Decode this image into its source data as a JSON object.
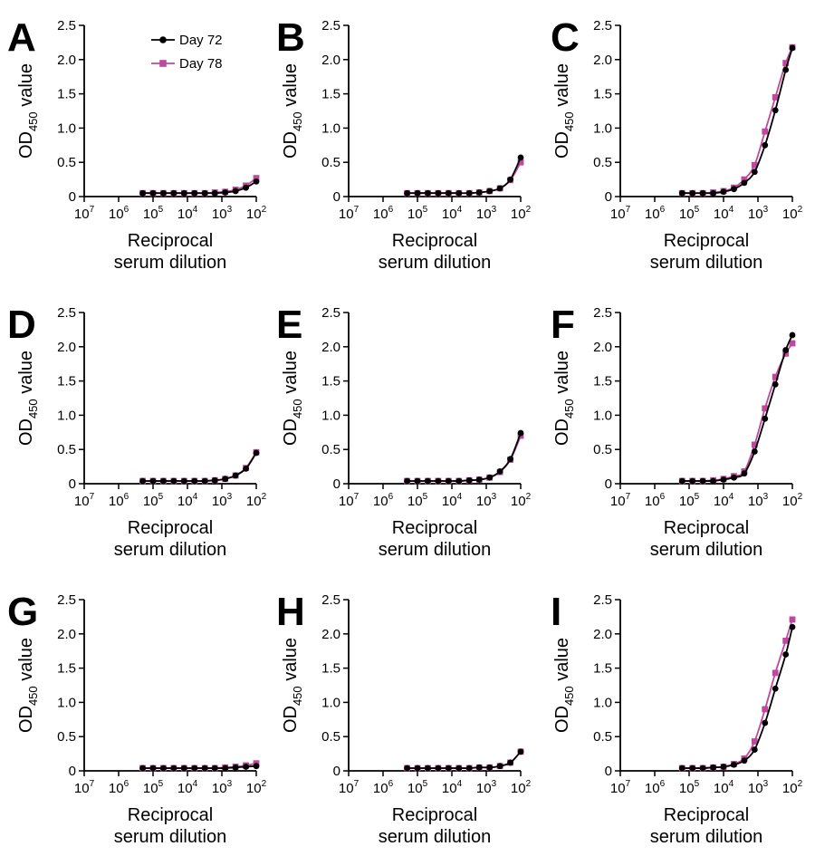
{
  "colors": {
    "day72": "#000000",
    "day78": "#c0479e"
  },
  "legend": [
    {
      "label": "Day 72",
      "marker": "circle",
      "color": "#000000"
    },
    {
      "label": "Day 78",
      "marker": "square",
      "color": "#c0479e"
    }
  ],
  "axes": {
    "ylabel_main": "OD",
    "ylabel_sub": "450",
    "ylabel_rest": " value",
    "xlabel_line1": "Reciprocal",
    "xlabel_line2": "serum dilution",
    "y_ticks": [
      "0",
      "0.5",
      "1.0",
      "1.5",
      "2.0",
      "2.5"
    ],
    "x_ticks": [
      {
        "base": "10",
        "exp": "7"
      },
      {
        "base": "10",
        "exp": "6"
      },
      {
        "base": "10",
        "exp": "5"
      },
      {
        "base": "10",
        "exp": "4"
      },
      {
        "base": "10",
        "exp": "3"
      },
      {
        "base": "10",
        "exp": "2"
      }
    ]
  },
  "chart_data": [
    {
      "panel": "A",
      "type": "line",
      "x": [
        200000,
        100000,
        50000,
        25000,
        12500,
        6250,
        3125,
        1600,
        800,
        400,
        200,
        100
      ],
      "xscale": "log-reversed",
      "xlim": [
        10000000,
        100
      ],
      "ylim": [
        0,
        2.5
      ],
      "series": [
        {
          "name": "Day 72",
          "values": [
            0.05,
            0.05,
            0.05,
            0.05,
            0.05,
            0.05,
            0.05,
            0.05,
            0.06,
            0.08,
            0.13,
            0.22
          ]
        },
        {
          "name": "Day 78",
          "values": [
            0.05,
            0.05,
            0.05,
            0.05,
            0.05,
            0.05,
            0.05,
            0.06,
            0.07,
            0.1,
            0.16,
            0.27
          ]
        }
      ]
    },
    {
      "panel": "B",
      "type": "line",
      "x": [
        200000,
        100000,
        50000,
        25000,
        12500,
        6250,
        3125,
        1600,
        800,
        400,
        200,
        100
      ],
      "xscale": "log-reversed",
      "xlim": [
        10000000,
        100
      ],
      "ylim": [
        0,
        2.5
      ],
      "series": [
        {
          "name": "Day 72",
          "values": [
            0.05,
            0.05,
            0.05,
            0.05,
            0.05,
            0.05,
            0.05,
            0.06,
            0.08,
            0.12,
            0.25,
            0.57
          ]
        },
        {
          "name": "Day 78",
          "values": [
            0.05,
            0.05,
            0.05,
            0.05,
            0.05,
            0.05,
            0.05,
            0.06,
            0.08,
            0.12,
            0.24,
            0.5
          ]
        }
      ]
    },
    {
      "panel": "C",
      "type": "line",
      "x": [
        160000,
        80000,
        40000,
        20000,
        10000,
        5000,
        2500,
        1250,
        625,
        312,
        156,
        100
      ],
      "xscale": "log-reversed",
      "xlim": [
        10000000,
        100
      ],
      "ylim": [
        0,
        2.5
      ],
      "series": [
        {
          "name": "Day 72",
          "values": [
            0.05,
            0.05,
            0.05,
            0.05,
            0.07,
            0.11,
            0.2,
            0.36,
            0.75,
            1.26,
            1.85,
            2.17
          ]
        },
        {
          "name": "Day 78",
          "values": [
            0.05,
            0.05,
            0.05,
            0.06,
            0.08,
            0.13,
            0.25,
            0.46,
            0.95,
            1.45,
            1.95,
            2.18
          ]
        }
      ]
    },
    {
      "panel": "D",
      "type": "line",
      "x": [
        200000,
        100000,
        50000,
        25000,
        12500,
        6250,
        3125,
        1600,
        800,
        400,
        200,
        100
      ],
      "xscale": "log-reversed",
      "xlim": [
        10000000,
        100
      ],
      "ylim": [
        0,
        2.5
      ],
      "series": [
        {
          "name": "Day 72",
          "values": [
            0.04,
            0.04,
            0.04,
            0.04,
            0.04,
            0.04,
            0.04,
            0.05,
            0.07,
            0.12,
            0.22,
            0.45
          ]
        },
        {
          "name": "Day 78",
          "values": [
            0.04,
            0.04,
            0.04,
            0.04,
            0.04,
            0.04,
            0.04,
            0.05,
            0.07,
            0.12,
            0.23,
            0.46
          ]
        }
      ]
    },
    {
      "panel": "E",
      "type": "line",
      "x": [
        200000,
        100000,
        50000,
        25000,
        12500,
        6250,
        3125,
        1600,
        800,
        400,
        200,
        100
      ],
      "xscale": "log-reversed",
      "xlim": [
        10000000,
        100
      ],
      "ylim": [
        0,
        2.5
      ],
      "series": [
        {
          "name": "Day 72",
          "values": [
            0.04,
            0.04,
            0.04,
            0.04,
            0.04,
            0.04,
            0.05,
            0.06,
            0.09,
            0.18,
            0.36,
            0.74
          ]
        },
        {
          "name": "Day 78",
          "values": [
            0.04,
            0.04,
            0.04,
            0.04,
            0.04,
            0.04,
            0.05,
            0.06,
            0.09,
            0.17,
            0.35,
            0.7
          ]
        }
      ]
    },
    {
      "panel": "F",
      "type": "line",
      "x": [
        160000,
        80000,
        40000,
        20000,
        10000,
        5000,
        2500,
        1250,
        625,
        312,
        156,
        100
      ],
      "xscale": "log-reversed",
      "xlim": [
        10000000,
        100
      ],
      "ylim": [
        0,
        2.5
      ],
      "series": [
        {
          "name": "Day 72",
          "values": [
            0.04,
            0.04,
            0.04,
            0.04,
            0.06,
            0.09,
            0.15,
            0.47,
            0.95,
            1.45,
            1.95,
            2.17
          ]
        },
        {
          "name": "Day 78",
          "values": [
            0.04,
            0.04,
            0.04,
            0.05,
            0.07,
            0.11,
            0.18,
            0.57,
            1.1,
            1.56,
            1.9,
            2.05
          ]
        }
      ]
    },
    {
      "panel": "G",
      "type": "line",
      "x": [
        200000,
        100000,
        50000,
        25000,
        12500,
        6250,
        3125,
        1600,
        800,
        400,
        200,
        100
      ],
      "xscale": "log-reversed",
      "xlim": [
        10000000,
        100
      ],
      "ylim": [
        0,
        2.5
      ],
      "series": [
        {
          "name": "Day 72",
          "values": [
            0.04,
            0.04,
            0.04,
            0.04,
            0.04,
            0.04,
            0.04,
            0.04,
            0.04,
            0.05,
            0.06,
            0.07
          ]
        },
        {
          "name": "Day 78",
          "values": [
            0.04,
            0.04,
            0.04,
            0.04,
            0.04,
            0.04,
            0.04,
            0.04,
            0.05,
            0.06,
            0.08,
            0.11
          ]
        }
      ]
    },
    {
      "panel": "H",
      "type": "line",
      "x": [
        200000,
        100000,
        50000,
        25000,
        12500,
        6250,
        3125,
        1600,
        800,
        400,
        200,
        100
      ],
      "xscale": "log-reversed",
      "xlim": [
        10000000,
        100
      ],
      "ylim": [
        0,
        2.5
      ],
      "series": [
        {
          "name": "Day 72",
          "values": [
            0.04,
            0.04,
            0.04,
            0.04,
            0.04,
            0.04,
            0.04,
            0.05,
            0.05,
            0.07,
            0.12,
            0.28
          ]
        },
        {
          "name": "Day 78",
          "values": [
            0.04,
            0.04,
            0.04,
            0.04,
            0.04,
            0.04,
            0.04,
            0.05,
            0.05,
            0.07,
            0.12,
            0.28
          ]
        }
      ]
    },
    {
      "panel": "I",
      "type": "line",
      "x": [
        160000,
        80000,
        40000,
        20000,
        10000,
        5000,
        2500,
        1250,
        625,
        312,
        156,
        100
      ],
      "xscale": "log-reversed",
      "xlim": [
        10000000,
        100
      ],
      "ylim": [
        0,
        2.5
      ],
      "series": [
        {
          "name": "Day 72",
          "values": [
            0.04,
            0.04,
            0.04,
            0.05,
            0.06,
            0.09,
            0.15,
            0.31,
            0.7,
            1.2,
            1.7,
            2.1
          ]
        },
        {
          "name": "Day 78",
          "values": [
            0.04,
            0.04,
            0.04,
            0.05,
            0.06,
            0.1,
            0.18,
            0.43,
            0.9,
            1.43,
            1.9,
            2.21
          ]
        }
      ]
    }
  ]
}
